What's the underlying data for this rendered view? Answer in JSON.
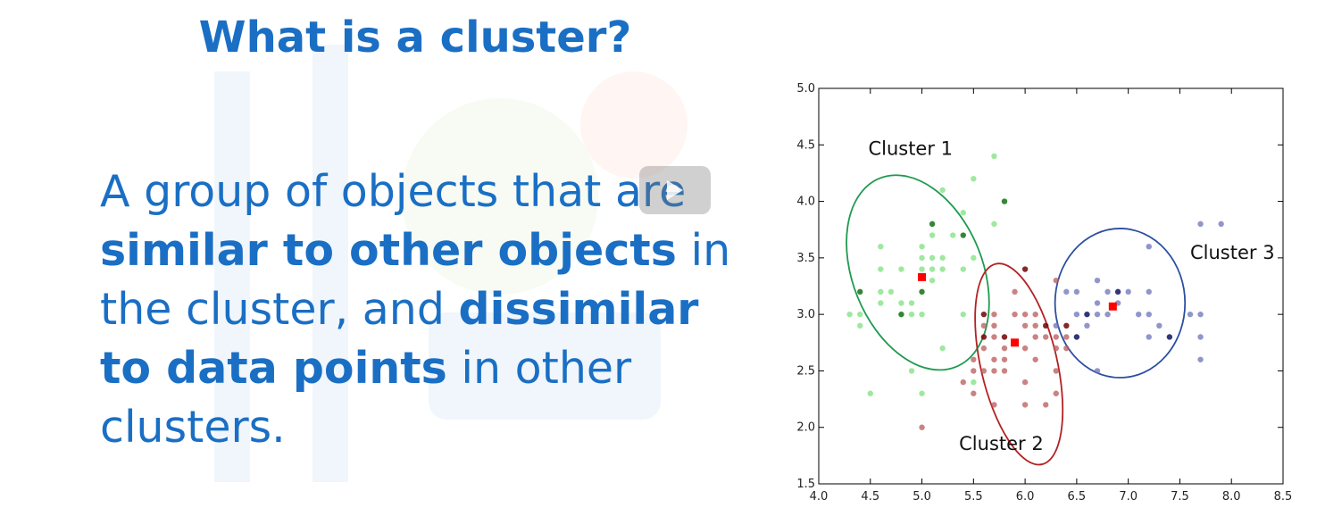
{
  "slide": {
    "title": "What is a cluster?",
    "definition": [
      {
        "text": "A group of objects that are ",
        "bold": false
      },
      {
        "text": "similar to other objects",
        "bold": true
      },
      {
        "text": " in the cluster, and ",
        "bold": false
      },
      {
        "text": "dissimilar to data points",
        "bold": true
      },
      {
        "text": " in other clusters.",
        "bold": false
      }
    ]
  },
  "chart_data": {
    "type": "scatter",
    "title": "",
    "xlabel": "",
    "ylabel": "",
    "xlim": [
      4.0,
      8.5
    ],
    "ylim": [
      1.5,
      5.0
    ],
    "xticks": [
      "4.0",
      "4.5",
      "5.0",
      "5.5",
      "6.0",
      "6.5",
      "7.0",
      "7.5",
      "8.0",
      "8.5"
    ],
    "yticks": [
      "1.5",
      "2.0",
      "2.5",
      "3.0",
      "3.5",
      "4.0",
      "4.5",
      "5.0"
    ],
    "grid": false,
    "series": [
      {
        "name": "Cluster 1",
        "color": "#7fe07f",
        "points": [
          [
            4.3,
            3.0
          ],
          [
            4.4,
            2.9
          ],
          [
            4.4,
            3.0
          ],
          [
            4.4,
            3.2
          ],
          [
            4.5,
            2.3
          ],
          [
            4.6,
            3.1
          ],
          [
            4.6,
            3.2
          ],
          [
            4.6,
            3.4
          ],
          [
            4.6,
            3.6
          ],
          [
            4.7,
            3.2
          ],
          [
            4.8,
            3.0
          ],
          [
            4.8,
            3.1
          ],
          [
            4.8,
            3.4
          ],
          [
            4.9,
            3.0
          ],
          [
            4.9,
            3.1
          ],
          [
            4.9,
            2.5
          ],
          [
            5.0,
            3.0
          ],
          [
            5.0,
            3.2
          ],
          [
            5.0,
            3.4
          ],
          [
            5.0,
            3.5
          ],
          [
            5.0,
            3.6
          ],
          [
            5.1,
            3.4
          ],
          [
            5.1,
            3.5
          ],
          [
            5.1,
            3.7
          ],
          [
            5.1,
            3.8
          ],
          [
            5.1,
            3.3
          ],
          [
            5.2,
            3.4
          ],
          [
            5.2,
            3.5
          ],
          [
            5.2,
            4.1
          ],
          [
            5.3,
            3.7
          ],
          [
            5.4,
            3.4
          ],
          [
            5.4,
            3.7
          ],
          [
            5.4,
            3.9
          ],
          [
            5.4,
            3.0
          ],
          [
            5.5,
            3.5
          ],
          [
            5.5,
            4.2
          ],
          [
            5.7,
            4.4
          ],
          [
            5.7,
            3.8
          ],
          [
            5.8,
            4.0
          ],
          [
            5.2,
            2.7
          ],
          [
            5.5,
            2.4
          ],
          [
            5.0,
            2.3
          ]
        ],
        "centroid": [
          5.0,
          3.33
        ]
      },
      {
        "name": "Cluster 2",
        "color": "#b85a5a",
        "points": [
          [
            5.6,
            2.9
          ],
          [
            5.6,
            2.5
          ],
          [
            5.6,
            2.7
          ],
          [
            5.6,
            3.0
          ],
          [
            5.7,
            2.8
          ],
          [
            5.7,
            2.6
          ],
          [
            5.7,
            2.9
          ],
          [
            5.7,
            3.0
          ],
          [
            5.8,
            2.7
          ],
          [
            5.8,
            2.6
          ],
          [
            5.8,
            2.8
          ],
          [
            5.9,
            3.0
          ],
          [
            5.9,
            3.2
          ],
          [
            6.0,
            2.2
          ],
          [
            6.0,
            2.7
          ],
          [
            6.0,
            2.9
          ],
          [
            6.0,
            3.0
          ],
          [
            6.0,
            3.4
          ],
          [
            6.1,
            2.6
          ],
          [
            6.1,
            2.8
          ],
          [
            6.1,
            2.9
          ],
          [
            6.1,
            3.0
          ],
          [
            6.2,
            2.2
          ],
          [
            6.2,
            2.8
          ],
          [
            6.2,
            2.9
          ],
          [
            6.3,
            2.5
          ],
          [
            6.3,
            2.7
          ],
          [
            6.3,
            2.8
          ],
          [
            6.3,
            2.3
          ],
          [
            6.4,
            2.7
          ],
          [
            6.4,
            2.8
          ],
          [
            6.4,
            2.9
          ],
          [
            6.3,
            3.3
          ],
          [
            5.5,
            2.6
          ],
          [
            5.5,
            2.3
          ],
          [
            5.7,
            2.5
          ],
          [
            5.5,
            2.5
          ],
          [
            5.8,
            2.5
          ],
          [
            5.6,
            2.8
          ],
          [
            5.7,
            2.2
          ],
          [
            6.0,
            2.4
          ],
          [
            5.0,
            2.0
          ],
          [
            5.4,
            2.4
          ]
        ],
        "centroid": [
          5.9,
          2.75
        ]
      },
      {
        "name": "Cluster 3",
        "color": "#6b72b8",
        "points": [
          [
            6.4,
            3.2
          ],
          [
            6.5,
            3.0
          ],
          [
            6.5,
            3.2
          ],
          [
            6.6,
            3.0
          ],
          [
            6.7,
            3.0
          ],
          [
            6.7,
            3.1
          ],
          [
            6.7,
            3.3
          ],
          [
            6.8,
            3.0
          ],
          [
            6.8,
            3.2
          ],
          [
            6.9,
            3.1
          ],
          [
            6.9,
            3.2
          ],
          [
            7.0,
            3.2
          ],
          [
            7.1,
            3.0
          ],
          [
            7.2,
            3.0
          ],
          [
            7.2,
            3.2
          ],
          [
            7.2,
            3.6
          ],
          [
            7.3,
            2.9
          ],
          [
            7.4,
            2.8
          ],
          [
            7.6,
            3.0
          ],
          [
            7.7,
            2.6
          ],
          [
            7.7,
            2.8
          ],
          [
            7.7,
            3.0
          ],
          [
            7.7,
            3.8
          ],
          [
            7.9,
            3.8
          ],
          [
            6.5,
            2.8
          ],
          [
            6.7,
            2.5
          ],
          [
            6.3,
            2.9
          ],
          [
            6.6,
            2.9
          ],
          [
            7.2,
            2.8
          ]
        ],
        "centroid": [
          6.85,
          3.07
        ]
      }
    ],
    "annotations": [
      "Cluster 1",
      "Cluster 2",
      "Cluster 3"
    ],
    "ellipse_colors": [
      "#1e9a4f",
      "#b22222",
      "#2b4ea0"
    ],
    "centroid_color": "#ff0000"
  }
}
